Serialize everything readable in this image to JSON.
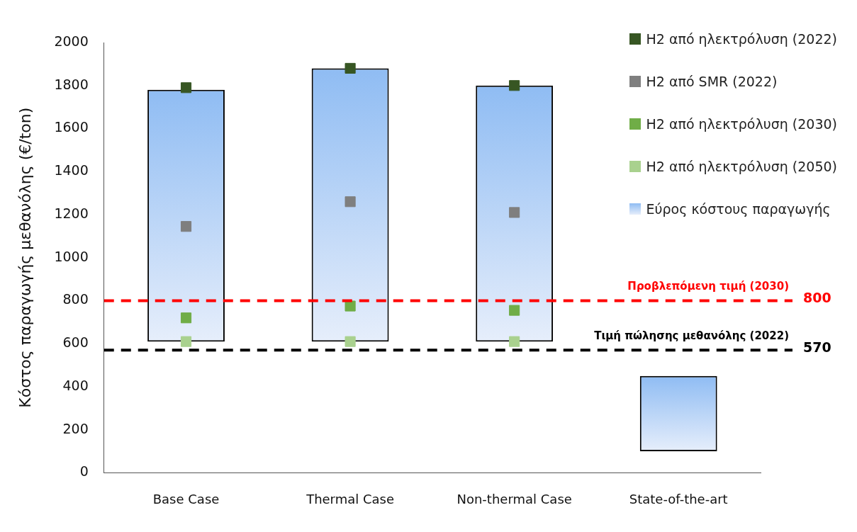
{
  "chart_data": {
    "type": "bar",
    "ylabel": "Κόστος παραγωγής μεθανόλης (€/ton)",
    "categories": [
      "Base Case",
      "Thermal Case",
      "Non-thermal Case",
      "State-of-the-art"
    ],
    "series": [
      {
        "name": "H2 από ηλεκτρόλυση (2022)",
        "type": "scatter",
        "color": "#375623",
        "values": [
          1790,
          1880,
          1800,
          null
        ]
      },
      {
        "name": "H2 από SMR (2022)",
        "type": "scatter",
        "color": "#7f7f7f",
        "values": [
          1145,
          1260,
          1210,
          null
        ]
      },
      {
        "name": "H2 από ηλεκτρόλυση (2030)",
        "type": "scatter",
        "color": "#70ad47",
        "values": [
          720,
          775,
          755,
          null
        ]
      },
      {
        "name": "H2 από ηλεκτρόλυση (2050)",
        "type": "scatter",
        "color": "#a9d18e",
        "values": [
          610,
          610,
          610,
          null
        ]
      },
      {
        "name": "Εύρος κόστους παραγωγής",
        "color": "#8fbcf3",
        "base": [
          610,
          610,
          610,
          100
        ],
        "values": [
          1170,
          1270,
          1190,
          350
        ]
      }
    ],
    "ylim": [
      0,
      2000
    ],
    "yticks": [
      0,
      200,
      400,
      600,
      800,
      1000,
      1200,
      1400,
      1600,
      1800,
      2000
    ],
    "grid": false,
    "annotations": [
      "800",
      "570"
    ],
    "legend": "top right",
    "marker": "square",
    "ref_lines": [
      {
        "axis": "y",
        "value": 800,
        "label": "Προβλεπόμενη τιμή (2030)",
        "color": "#ff0000",
        "line_style": "dashed"
      },
      {
        "axis": "y",
        "value": 570,
        "label": "Τιμή πώλησης μεθανόλης (2022)",
        "color": "#000000",
        "line_style": "dashed"
      }
    ]
  }
}
